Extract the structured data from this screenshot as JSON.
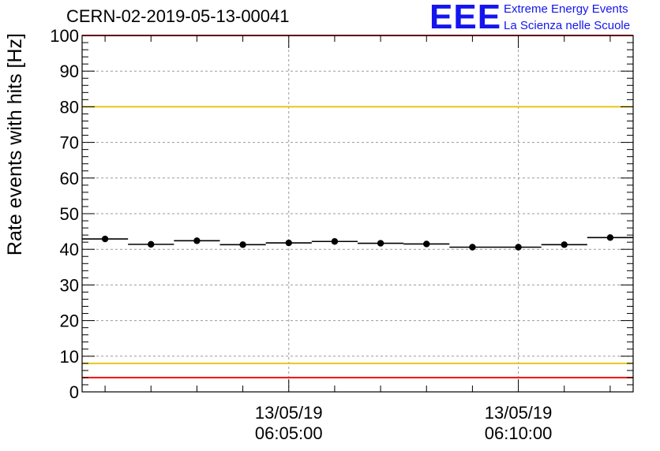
{
  "header": {
    "run_title": "CERN-02-2019-05-13-00041",
    "logo_text": "EEE",
    "logo_line1": "Extreme Energy Events",
    "logo_line2": "La Scienza nelle Scuole"
  },
  "chart_data": {
    "type": "scatter",
    "title": "CERN-02-2019-05-13-00041",
    "ylabel": "Rate events with hits [Hz]",
    "xlabel": "",
    "ylim": [
      0,
      100
    ],
    "yticks": [
      0,
      10,
      20,
      30,
      40,
      50,
      60,
      70,
      80,
      90,
      100
    ],
    "xlim": [
      "2019-05-13 06:00:30",
      "2019-05-13 06:12:30"
    ],
    "xticks": [
      {
        "t": "2019-05-13 06:05:00",
        "label_date": "13/05/19",
        "label_time": "06:05:00"
      },
      {
        "t": "2019-05-13 06:10:00",
        "label_date": "13/05/19",
        "label_time": "06:10:00"
      }
    ],
    "grid": true,
    "series": [
      {
        "points": [
          {
            "t": "2019-05-13 06:00:30",
            "t_end": "2019-05-13 06:01:30",
            "y": 42.9
          },
          {
            "t": "2019-05-13 06:01:30",
            "t_end": "2019-05-13 06:02:30",
            "y": 41.4
          },
          {
            "t": "2019-05-13 06:02:30",
            "t_end": "2019-05-13 06:03:30",
            "y": 42.4
          },
          {
            "t": "2019-05-13 06:03:30",
            "t_end": "2019-05-13 06:04:30",
            "y": 41.3
          },
          {
            "t": "2019-05-13 06:04:30",
            "t_end": "2019-05-13 06:05:30",
            "y": 41.8
          },
          {
            "t": "2019-05-13 06:05:30",
            "t_end": "2019-05-13 06:06:30",
            "y": 42.2
          },
          {
            "t": "2019-05-13 06:06:30",
            "t_end": "2019-05-13 06:07:30",
            "y": 41.7
          },
          {
            "t": "2019-05-13 06:07:30",
            "t_end": "2019-05-13 06:08:30",
            "y": 41.5
          },
          {
            "t": "2019-05-13 06:08:30",
            "t_end": "2019-05-13 06:09:30",
            "y": 40.6
          },
          {
            "t": "2019-05-13 06:09:30",
            "t_end": "2019-05-13 06:10:30",
            "y": 40.6
          },
          {
            "t": "2019-05-13 06:10:30",
            "t_end": "2019-05-13 06:11:30",
            "y": 41.3
          },
          {
            "t": "2019-05-13 06:11:30",
            "t_end": "2019-05-13 06:12:30",
            "y": 43.3
          }
        ],
        "color": "#000000"
      }
    ],
    "reference_lines": [
      {
        "y": 100,
        "color": "#ee1111"
      },
      {
        "y": 80,
        "color": "#e6c619"
      },
      {
        "y": 8,
        "color": "#e6c619"
      },
      {
        "y": 4,
        "color": "#ee1111"
      }
    ]
  }
}
